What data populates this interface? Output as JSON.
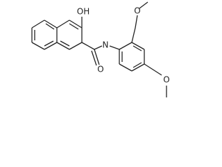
{
  "atoms": {
    "hydroxyl": "OH",
    "amide_n": "N",
    "carbonyl_o": "O",
    "methoxy_o_1": "O",
    "methoxy_o_2": "O"
  }
}
